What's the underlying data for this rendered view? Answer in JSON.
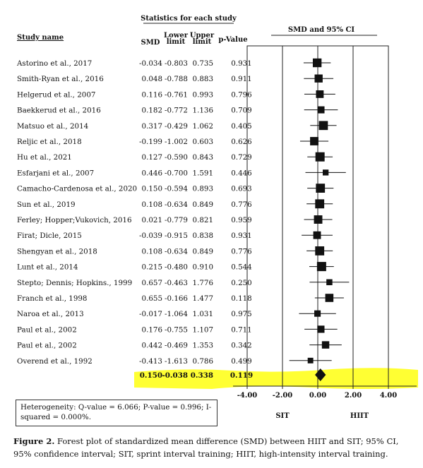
{
  "headers": {
    "stats_group": "Statistics for each study",
    "study_name": "Study name",
    "smd": "SMD",
    "lower_1": "Lower",
    "lower_2": "limit",
    "upper_1": "Upper",
    "upper_2": "limit",
    "p_value": "p-Value",
    "plot_title": "SMD and 95% CI"
  },
  "chart_data": {
    "type": "forest",
    "studies": [
      {
        "name": "Astorino et al., 2017",
        "smd": -0.034,
        "lower": -0.803,
        "upper": 0.735,
        "p": "0.931",
        "smd_text": "-0.034",
        "lower_text": "-0.803",
        "upper_text": "0.735"
      },
      {
        "name": "Smith-Ryan et al., 2016",
        "smd": 0.048,
        "lower": -0.788,
        "upper": 0.883,
        "p": "0.911",
        "smd_text": "0.048",
        "lower_text": "-0.788",
        "upper_text": "0.883"
      },
      {
        "name": "Helgerud et al., 2007",
        "smd": 0.116,
        "lower": -0.761,
        "upper": 0.993,
        "p": "0.796",
        "smd_text": "0.116",
        "lower_text": "-0.761",
        "upper_text": "0.993"
      },
      {
        "name": "Baekkerud et al., 2016",
        "smd": 0.182,
        "lower": -0.772,
        "upper": 1.136,
        "p": "0.709",
        "smd_text": "0.182",
        "lower_text": "-0.772",
        "upper_text": "1.136"
      },
      {
        "name": "Matsuo et al., 2014",
        "smd": 0.317,
        "lower": -0.429,
        "upper": 1.062,
        "p": "0.405",
        "smd_text": "0.317",
        "lower_text": "-0.429",
        "upper_text": "1.062"
      },
      {
        "name": "Reljic et al., 2018",
        "smd": -0.199,
        "lower": -1.002,
        "upper": 0.603,
        "p": "0.626",
        "smd_text": "-0.199",
        "lower_text": "-1.002",
        "upper_text": "0.603"
      },
      {
        "name": "Hu et al., 2021",
        "smd": 0.127,
        "lower": -0.59,
        "upper": 0.843,
        "p": "0.729",
        "smd_text": "0.127",
        "lower_text": "-0.590",
        "upper_text": "0.843"
      },
      {
        "name": "Esfarjani et al., 2007",
        "smd": 0.446,
        "lower": -0.7,
        "upper": 1.591,
        "p": "0.446",
        "smd_text": "0.446",
        "lower_text": "-0.700",
        "upper_text": "1.591"
      },
      {
        "name": "Camacho-Cardenosa et al., 2020",
        "smd": 0.15,
        "lower": -0.594,
        "upper": 0.893,
        "p": "0.693",
        "smd_text": "0.150",
        "lower_text": "-0.594",
        "upper_text": "0.893"
      },
      {
        "name": "Sun et al., 2019",
        "smd": 0.108,
        "lower": -0.634,
        "upper": 0.849,
        "p": "0.776",
        "smd_text": "0.108",
        "lower_text": "-0.634",
        "upper_text": "0.849"
      },
      {
        "name": "Ferley; Hopper;Vukovich, 2016",
        "smd": 0.021,
        "lower": -0.779,
        "upper": 0.821,
        "p": "0.959",
        "smd_text": "0.021",
        "lower_text": "-0.779",
        "upper_text": "0.821"
      },
      {
        "name": "Firat; Dicle, 2015",
        "smd": -0.039,
        "lower": -0.915,
        "upper": 0.838,
        "p": "0.931",
        "smd_text": "-0.039",
        "lower_text": "-0.915",
        "upper_text": "0.838"
      },
      {
        "name": "Shengyan et al., 2018",
        "smd": 0.108,
        "lower": -0.634,
        "upper": 0.849,
        "p": "0.776",
        "smd_text": "0.108",
        "lower_text": "-0.634",
        "upper_text": "0.849"
      },
      {
        "name": "Lunt et al., 2014",
        "smd": 0.215,
        "lower": -0.48,
        "upper": 0.91,
        "p": "0.544",
        "smd_text": "0.215",
        "lower_text": "-0.480",
        "upper_text": "0.910"
      },
      {
        "name": "Stepto; Dennis; Hopkins., 1999",
        "smd": 0.657,
        "lower": -0.463,
        "upper": 1.776,
        "p": "0.250",
        "smd_text": "0.657",
        "lower_text": "-0.463",
        "upper_text": "1.776"
      },
      {
        "name": "Franch et al., 1998",
        "smd": 0.655,
        "lower": -0.166,
        "upper": 1.477,
        "p": "0.118",
        "smd_text": "0.655",
        "lower_text": "-0.166",
        "upper_text": "1.477"
      },
      {
        "name": "Naroa et al., 2013",
        "smd": -0.017,
        "lower": -1.064,
        "upper": 1.031,
        "p": "0.975",
        "smd_text": "-0.017",
        "lower_text": "-1.064",
        "upper_text": "1.031"
      },
      {
        "name": "Paul et al., 2002",
        "smd": 0.176,
        "lower": -0.755,
        "upper": 1.107,
        "p": "0.711",
        "smd_text": "0.176",
        "lower_text": "-0.755",
        "upper_text": "1.107"
      },
      {
        "name": "Paul et al., 2002",
        "smd": 0.442,
        "lower": -0.469,
        "upper": 1.353,
        "p": "0.342",
        "smd_text": "0.442",
        "lower_text": "-0.469",
        "upper_text": "1.353"
      },
      {
        "name": "Overend et al., 1992",
        "smd": -0.413,
        "lower": -1.613,
        "upper": 0.786,
        "p": "0.499",
        "smd_text": "-0.413",
        "lower_text": "-1.613",
        "upper_text": "0.786"
      }
    ],
    "summary": {
      "smd": 0.15,
      "lower": -0.038,
      "upper": 0.338,
      "p": "0.119",
      "smd_text": "0.150",
      "lower_text": "-0.038",
      "upper_text": "0.338"
    },
    "xlim": [
      -4,
      4
    ],
    "xticks": [
      -4,
      -2,
      0,
      2,
      4
    ],
    "xtick_labels": [
      "-4.00",
      "-2.00",
      "0.00",
      "2.00",
      "4.00"
    ],
    "reference_lines": [
      -4,
      -2,
      0,
      2,
      4
    ],
    "left_label": "SIT",
    "right_label": "HIIT",
    "highlight_color": "#ffff33"
  },
  "heterogeneity": "Heterogeneity: Q-value = 6.066; P-value = 0.996; I-squared = 0.000%.",
  "caption": {
    "label": "Figure 2.",
    "text": " Forest plot of standardized mean difference (SMD) between HIIT and SIT; 95% CI, 95% confidence interval; SIT, sprint interval training; HIIT, high-intensity interval training."
  }
}
